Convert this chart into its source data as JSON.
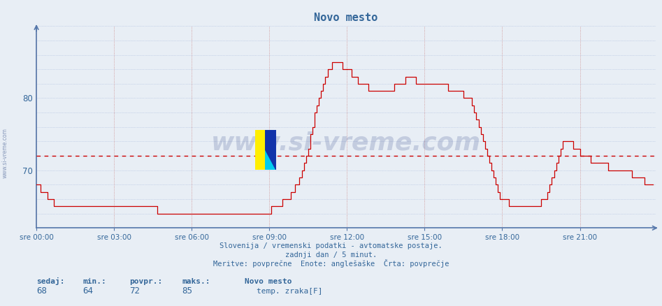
{
  "title": "Novo mesto",
  "bg_color": "#e8eef5",
  "plot_bg_color": "#e8eef5",
  "line_color": "#cc0000",
  "avg_line_color": "#cc0000",
  "avg_line_value": 72,
  "axis_color": "#5577aa",
  "text_color": "#336699",
  "grid_color_v": "#cc8888",
  "grid_color_h": "#aabbdd",
  "ytick_labels": [
    "70",
    "80"
  ],
  "ytick_values": [
    70,
    80
  ],
  "ylim_min": 62,
  "ylim_max": 90,
  "xlim_min": 0,
  "xlim_max": 287,
  "xtick_positions": [
    0,
    36,
    72,
    108,
    144,
    180,
    216,
    252
  ],
  "xtick_labels": [
    "sre 00:00",
    "sre 03:00",
    "sre 06:00",
    "sre 09:00",
    "sre 12:00",
    "sre 15:00",
    "sre 18:00",
    "sre 21:00"
  ],
  "footer_line1": "Slovenija / vremenski podatki - avtomatske postaje.",
  "footer_line2": "zadnji dan / 5 minut.",
  "footer_line3": "Meritve: povprečne  Enote: anglešaške  Črta: povprečje",
  "legend_title": "Novo mesto",
  "legend_label": "temp. zraka[F]",
  "stat_labels": [
    "sedaj:",
    "min.:",
    "povpr.:",
    "maks.:"
  ],
  "stat_values": [
    "68",
    "64",
    "72",
    "85"
  ],
  "watermark": "www.si-vreme.com",
  "left_label": "www.si-vreme.com",
  "data_points": [
    68,
    68,
    67,
    67,
    67,
    66,
    66,
    66,
    65,
    65,
    65,
    65,
    65,
    65,
    65,
    65,
    65,
    65,
    65,
    65,
    65,
    65,
    65,
    65,
    65,
    65,
    65,
    65,
    65,
    65,
    65,
    65,
    65,
    65,
    65,
    65,
    65,
    65,
    65,
    65,
    65,
    65,
    65,
    65,
    65,
    65,
    65,
    65,
    65,
    65,
    65,
    65,
    65,
    65,
    65,
    65,
    64,
    64,
    64,
    64,
    64,
    64,
    64,
    64,
    64,
    64,
    64,
    64,
    64,
    64,
    64,
    64,
    64,
    64,
    64,
    64,
    64,
    64,
    64,
    64,
    64,
    64,
    64,
    64,
    64,
    64,
    64,
    64,
    64,
    64,
    64,
    64,
    64,
    64,
    64,
    64,
    64,
    64,
    64,
    64,
    64,
    64,
    64,
    64,
    64,
    64,
    64,
    64,
    64,
    65,
    65,
    65,
    65,
    65,
    66,
    66,
    66,
    66,
    67,
    67,
    68,
    68,
    69,
    70,
    71,
    72,
    73,
    75,
    76,
    78,
    79,
    80,
    81,
    82,
    83,
    84,
    84,
    85,
    85,
    85,
    85,
    85,
    84,
    84,
    84,
    84,
    83,
    83,
    83,
    82,
    82,
    82,
    82,
    82,
    81,
    81,
    81,
    81,
    81,
    81,
    81,
    81,
    81,
    81,
    81,
    81,
    82,
    82,
    82,
    82,
    82,
    83,
    83,
    83,
    83,
    83,
    82,
    82,
    82,
    82,
    82,
    82,
    82,
    82,
    82,
    82,
    82,
    82,
    82,
    82,
    82,
    81,
    81,
    81,
    81,
    81,
    81,
    81,
    80,
    80,
    80,
    80,
    79,
    78,
    77,
    76,
    75,
    74,
    73,
    72,
    71,
    70,
    69,
    68,
    67,
    66,
    66,
    66,
    66,
    65,
    65,
    65,
    65,
    65,
    65,
    65,
    65,
    65,
    65,
    65,
    65,
    65,
    65,
    65,
    66,
    66,
    66,
    67,
    68,
    69,
    70,
    71,
    72,
    73,
    74,
    74,
    74,
    74,
    74,
    73,
    73,
    73,
    72,
    72,
    72,
    72,
    72,
    71,
    71,
    71,
    71,
    71,
    71,
    71,
    71,
    70,
    70,
    70,
    70,
    70,
    70,
    70,
    70,
    70,
    70,
    70,
    69,
    69,
    69,
    69,
    69,
    69,
    68,
    68,
    68,
    68,
    68
  ]
}
